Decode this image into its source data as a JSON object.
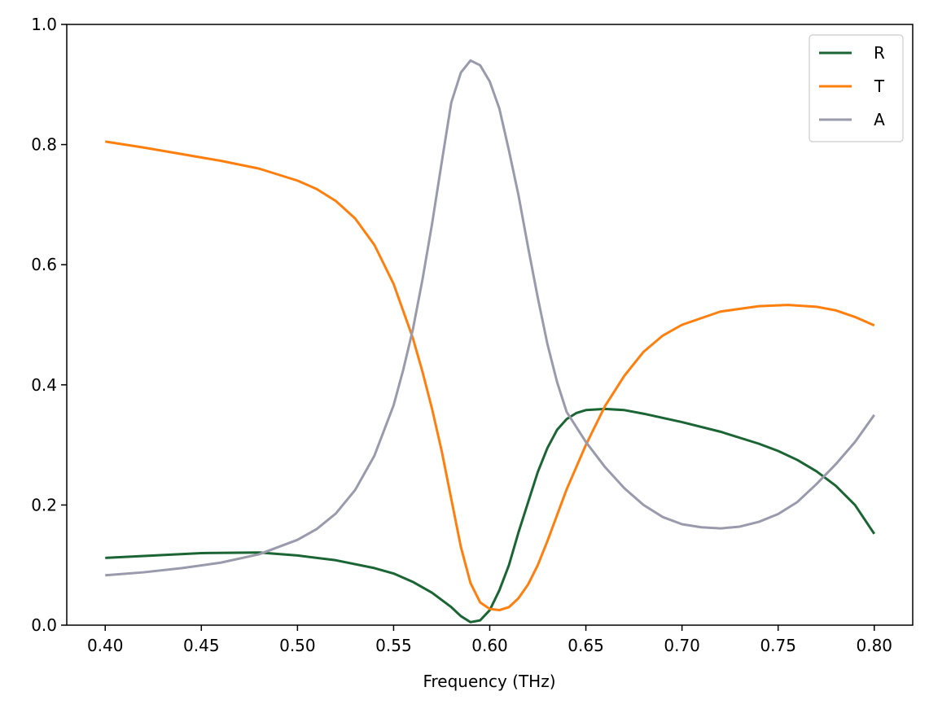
{
  "chart_data": {
    "type": "line",
    "title": "",
    "xlabel": "Frequency (THz)",
    "ylabel": "",
    "xlim": [
      0.38,
      0.82
    ],
    "ylim": [
      0.0,
      1.0
    ],
    "x_ticks": [
      0.4,
      0.45,
      0.5,
      0.55,
      0.6,
      0.65,
      0.7,
      0.75,
      0.8
    ],
    "x_tick_labels": [
      "0.40",
      "0.45",
      "0.50",
      "0.55",
      "0.60",
      "0.65",
      "0.70",
      "0.75",
      "0.80"
    ],
    "y_ticks": [
      0.0,
      0.2,
      0.4,
      0.6,
      0.8,
      1.0
    ],
    "y_tick_labels": [
      "0.0",
      "0.2",
      "0.4",
      "0.6",
      "0.8",
      "1.0"
    ],
    "grid": false,
    "legend_position": "top-right",
    "series": [
      {
        "name": "R",
        "color": "#1a6533",
        "points": [
          [
            0.4,
            0.112
          ],
          [
            0.45,
            0.12
          ],
          [
            0.48,
            0.121
          ],
          [
            0.5,
            0.116
          ],
          [
            0.52,
            0.108
          ],
          [
            0.54,
            0.095
          ],
          [
            0.55,
            0.086
          ],
          [
            0.56,
            0.072
          ],
          [
            0.57,
            0.054
          ],
          [
            0.58,
            0.03
          ],
          [
            0.585,
            0.015
          ],
          [
            0.59,
            0.005
          ],
          [
            0.595,
            0.008
          ],
          [
            0.6,
            0.025
          ],
          [
            0.605,
            0.058
          ],
          [
            0.61,
            0.1
          ],
          [
            0.615,
            0.155
          ],
          [
            0.62,
            0.205
          ],
          [
            0.625,
            0.255
          ],
          [
            0.63,
            0.295
          ],
          [
            0.635,
            0.325
          ],
          [
            0.64,
            0.343
          ],
          [
            0.645,
            0.353
          ],
          [
            0.65,
            0.358
          ],
          [
            0.66,
            0.36
          ],
          [
            0.67,
            0.358
          ],
          [
            0.68,
            0.352
          ],
          [
            0.7,
            0.338
          ],
          [
            0.72,
            0.322
          ],
          [
            0.74,
            0.302
          ],
          [
            0.75,
            0.29
          ],
          [
            0.76,
            0.275
          ],
          [
            0.77,
            0.256
          ],
          [
            0.78,
            0.232
          ],
          [
            0.79,
            0.2
          ],
          [
            0.8,
            0.152
          ]
        ]
      },
      {
        "name": "T",
        "color": "#ff7f0e",
        "points": [
          [
            0.4,
            0.805
          ],
          [
            0.42,
            0.795
          ],
          [
            0.44,
            0.784
          ],
          [
            0.46,
            0.773
          ],
          [
            0.48,
            0.76
          ],
          [
            0.5,
            0.74
          ],
          [
            0.51,
            0.726
          ],
          [
            0.52,
            0.706
          ],
          [
            0.53,
            0.677
          ],
          [
            0.54,
            0.633
          ],
          [
            0.55,
            0.568
          ],
          [
            0.56,
            0.478
          ],
          [
            0.565,
            0.422
          ],
          [
            0.57,
            0.36
          ],
          [
            0.575,
            0.29
          ],
          [
            0.58,
            0.21
          ],
          [
            0.585,
            0.13
          ],
          [
            0.59,
            0.07
          ],
          [
            0.595,
            0.038
          ],
          [
            0.6,
            0.027
          ],
          [
            0.605,
            0.025
          ],
          [
            0.61,
            0.03
          ],
          [
            0.615,
            0.045
          ],
          [
            0.62,
            0.068
          ],
          [
            0.625,
            0.1
          ],
          [
            0.63,
            0.14
          ],
          [
            0.64,
            0.226
          ],
          [
            0.65,
            0.3
          ],
          [
            0.66,
            0.365
          ],
          [
            0.67,
            0.415
          ],
          [
            0.68,
            0.455
          ],
          [
            0.69,
            0.482
          ],
          [
            0.7,
            0.5
          ],
          [
            0.72,
            0.522
          ],
          [
            0.74,
            0.531
          ],
          [
            0.755,
            0.533
          ],
          [
            0.77,
            0.53
          ],
          [
            0.78,
            0.524
          ],
          [
            0.79,
            0.513
          ],
          [
            0.8,
            0.499
          ]
        ]
      },
      {
        "name": "A",
        "color": "#999aab",
        "points": [
          [
            0.4,
            0.083
          ],
          [
            0.42,
            0.088
          ],
          [
            0.44,
            0.095
          ],
          [
            0.46,
            0.104
          ],
          [
            0.48,
            0.118
          ],
          [
            0.5,
            0.142
          ],
          [
            0.51,
            0.16
          ],
          [
            0.52,
            0.186
          ],
          [
            0.53,
            0.225
          ],
          [
            0.54,
            0.282
          ],
          [
            0.55,
            0.366
          ],
          [
            0.555,
            0.425
          ],
          [
            0.56,
            0.492
          ],
          [
            0.565,
            0.575
          ],
          [
            0.57,
            0.668
          ],
          [
            0.575,
            0.77
          ],
          [
            0.58,
            0.87
          ],
          [
            0.585,
            0.92
          ],
          [
            0.59,
            0.94
          ],
          [
            0.595,
            0.932
          ],
          [
            0.6,
            0.905
          ],
          [
            0.605,
            0.86
          ],
          [
            0.61,
            0.79
          ],
          [
            0.615,
            0.715
          ],
          [
            0.62,
            0.628
          ],
          [
            0.625,
            0.545
          ],
          [
            0.63,
            0.468
          ],
          [
            0.635,
            0.405
          ],
          [
            0.64,
            0.355
          ],
          [
            0.65,
            0.305
          ],
          [
            0.66,
            0.263
          ],
          [
            0.67,
            0.228
          ],
          [
            0.68,
            0.2
          ],
          [
            0.69,
            0.18
          ],
          [
            0.7,
            0.168
          ],
          [
            0.71,
            0.163
          ],
          [
            0.72,
            0.161
          ],
          [
            0.73,
            0.164
          ],
          [
            0.74,
            0.172
          ],
          [
            0.75,
            0.185
          ],
          [
            0.76,
            0.205
          ],
          [
            0.77,
            0.235
          ],
          [
            0.78,
            0.268
          ],
          [
            0.79,
            0.305
          ],
          [
            0.8,
            0.35
          ]
        ]
      }
    ]
  }
}
